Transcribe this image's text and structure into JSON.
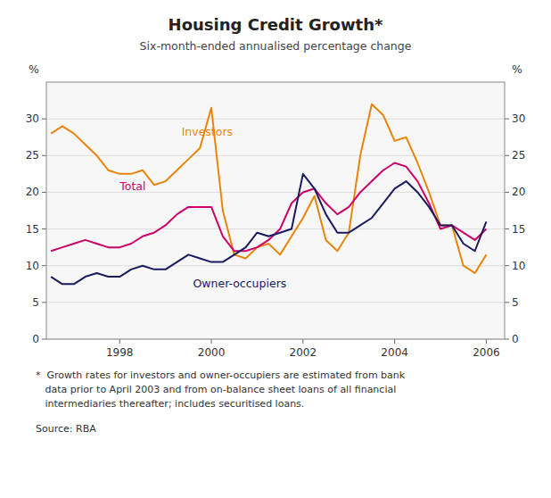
{
  "chart_data": {
    "type": "line",
    "title": "Housing Credit Growth*",
    "subtitle": "Six-month-ended annualised percentage change",
    "ylabel": "%",
    "y2label": "%",
    "footnotes": [
      "*  Growth rates for investors and owner-occupiers are estimated from bank",
      "   data prior to April 2003 and from on-balance sheet loans of all financial",
      "   intermediaries thereafter; includes securitised loans."
    ],
    "source": "Source: RBA",
    "xlim": [
      1996.4,
      2006.4
    ],
    "xticks": [
      1998,
      2000,
      2002,
      2004,
      2006
    ],
    "ylim": [
      0,
      35
    ],
    "yticks": [
      0,
      5,
      10,
      15,
      20,
      25,
      30
    ],
    "y2lim": [
      0,
      35
    ],
    "y2ticks": [
      0,
      5,
      10,
      15,
      20,
      25,
      30
    ],
    "grid": true,
    "x": [
      1996.5,
      1996.75,
      1997.0,
      1997.25,
      1997.5,
      1997.75,
      1998.0,
      1998.25,
      1998.5,
      1998.75,
      1999.0,
      1999.25,
      1999.5,
      1999.75,
      2000.0,
      2000.25,
      2000.5,
      2000.75,
      2001.0,
      2001.25,
      2001.5,
      2001.75,
      2002.0,
      2002.25,
      2002.5,
      2002.75,
      2003.0,
      2003.25,
      2003.5,
      2003.75,
      2004.0,
      2004.25,
      2004.5,
      2004.75,
      2005.0,
      2005.25,
      2005.5,
      2005.75,
      2006.0
    ],
    "series": [
      {
        "name": "Investors",
        "color": "#e8850a",
        "values": [
          28.0,
          29.0,
          28.0,
          26.5,
          25.0,
          23.0,
          22.5,
          22.5,
          23.0,
          21.0,
          21.5,
          23.0,
          24.5,
          26.0,
          31.5,
          17.5,
          11.5,
          11.0,
          12.5,
          13.0,
          11.5,
          14.0,
          16.5,
          19.5,
          13.5,
          12.0,
          14.5,
          25.0,
          32.0,
          30.5,
          27.0,
          27.5,
          24.0,
          20.0,
          15.5,
          15.5,
          10.0,
          9.0,
          11.5
        ]
      },
      {
        "name": "Total",
        "color": "#cc0066",
        "values": [
          12.0,
          12.5,
          13.0,
          13.5,
          13.0,
          12.5,
          12.5,
          13.0,
          14.0,
          14.5,
          15.5,
          17.0,
          18.0,
          18.0,
          18.0,
          14.0,
          12.0,
          12.0,
          12.5,
          13.5,
          15.0,
          18.5,
          20.0,
          20.5,
          18.5,
          17.0,
          18.0,
          20.0,
          21.5,
          23.0,
          24.0,
          23.5,
          21.5,
          18.5,
          15.0,
          15.5,
          14.5,
          13.5,
          15.0
        ]
      },
      {
        "name": "Owner-occupiers",
        "color": "#1a1a5e",
        "values": [
          8.5,
          7.5,
          7.5,
          8.5,
          9.0,
          8.5,
          8.5,
          9.5,
          10.0,
          9.5,
          9.5,
          10.5,
          11.5,
          11.0,
          10.5,
          10.5,
          11.5,
          12.5,
          14.5,
          14.0,
          14.5,
          15.0,
          22.5,
          20.5,
          17.0,
          14.5,
          14.5,
          15.5,
          16.5,
          18.5,
          20.5,
          21.5,
          20.0,
          18.0,
          15.5,
          15.5,
          13.0,
          12.0,
          16.0
        ]
      }
    ]
  }
}
